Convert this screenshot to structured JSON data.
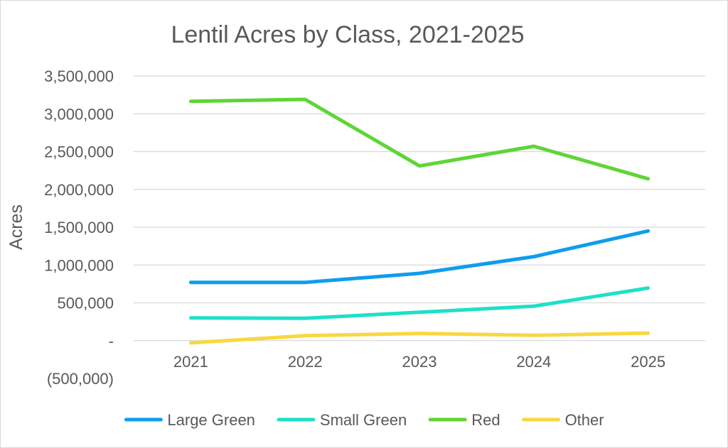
{
  "chart_data": {
    "type": "line",
    "title": "Lentil Acres by Class, 2021-2025",
    "xlabel": "",
    "ylabel": "Acres",
    "categories": [
      "2021",
      "2022",
      "2023",
      "2024",
      "2025"
    ],
    "ylim": [
      -500000,
      3500000
    ],
    "y_ticks": [
      3500000,
      3000000,
      2500000,
      2000000,
      1500000,
      1000000,
      500000,
      0,
      -500000
    ],
    "y_tick_labels": [
      "3,500,000",
      "3,000,000",
      "2,500,000",
      "2,000,000",
      "1,500,000",
      "1,000,000",
      "500,000",
      "-",
      "(500,000)"
    ],
    "grid": true,
    "legend_position": "bottom",
    "series": [
      {
        "name": "Large Green",
        "color": "#0f9ded",
        "values": [
          770000,
          770000,
          890000,
          1110000,
          1450000
        ]
      },
      {
        "name": "Small Green",
        "color": "#1ee0c9",
        "values": [
          300000,
          295000,
          375000,
          455000,
          695000
        ]
      },
      {
        "name": "Red",
        "color": "#5fd535",
        "values": [
          3165000,
          3190000,
          2310000,
          2570000,
          2140000
        ]
      },
      {
        "name": "Other",
        "color": "#f9d740",
        "values": [
          -30000,
          65000,
          95000,
          70000,
          100000
        ]
      }
    ]
  }
}
